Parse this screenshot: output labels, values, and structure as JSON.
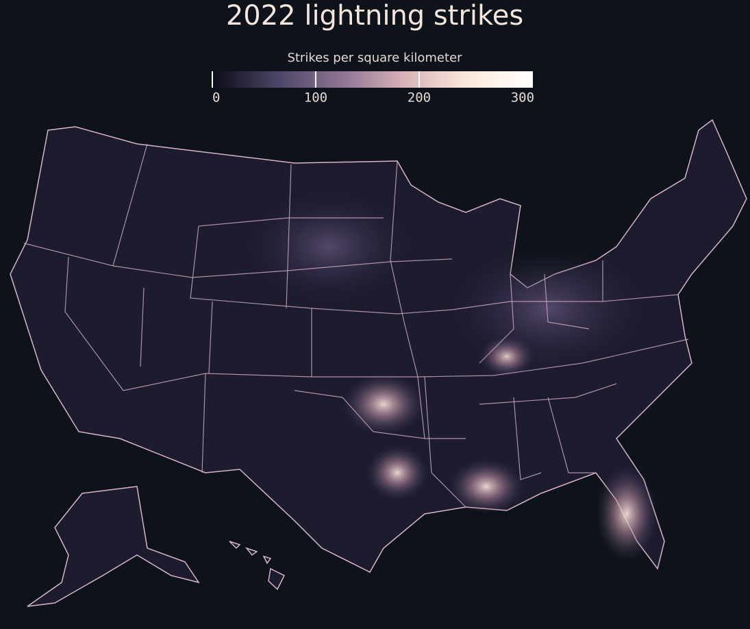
{
  "title": "2022 lightning strikes",
  "legend": {
    "label": "Strikes per square kilometer",
    "range": [
      0,
      310
    ],
    "ticks": [
      0,
      100,
      200,
      300
    ],
    "colors": [
      "#0b0c18",
      "#4a4466",
      "#8c7394",
      "#d8b2b8",
      "#fbe9dc",
      "#ffffff"
    ]
  }
}
